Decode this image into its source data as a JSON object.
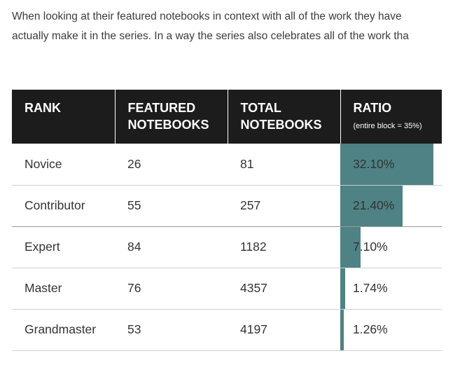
{
  "intro": {
    "line1": "When looking at their featured notebooks in context with all of the work they have",
    "line2": "actually make it in the series. In a way the series also celebrates all of the work tha"
  },
  "table": {
    "headers": {
      "rank": "RANK",
      "featured": "FEATURED NOTEBOOKS",
      "total": "TOTAL NOTEBOOKS",
      "ratio": "RATIO",
      "ratio_note": "(entire block = 35%)"
    },
    "block_max_percent": 35,
    "rows": [
      {
        "rank": "Novice",
        "featured": "26",
        "total": "81",
        "ratio_label": "32.10%",
        "ratio_value": 32.1
      },
      {
        "rank": "Contributor",
        "featured": "55",
        "total": "257",
        "ratio_label": "21.40%",
        "ratio_value": 21.4
      },
      {
        "rank": "Expert",
        "featured": "84",
        "total": "1182",
        "ratio_label": "7.10%",
        "ratio_value": 7.1
      },
      {
        "rank": "Master",
        "featured": "76",
        "total": "4357",
        "ratio_label": "1.74%",
        "ratio_value": 1.74
      },
      {
        "rank": "Grandmaster",
        "featured": "53",
        "total": "4197",
        "ratio_label": "1.26%",
        "ratio_value": 1.26
      }
    ],
    "bar_color": "#4f8284"
  }
}
